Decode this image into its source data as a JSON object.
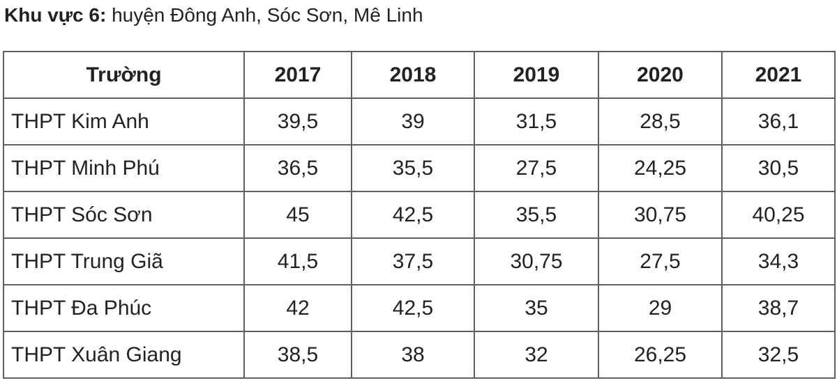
{
  "heading": {
    "bold": "Khu vực 6:",
    "text": " huyện Đông Anh, Sóc Sơn, Mê Linh"
  },
  "table": {
    "headers": [
      "Trường",
      "2017",
      "2018",
      "2019",
      "2020",
      "2021"
    ],
    "rows": [
      [
        "THPT Kim Anh",
        "39,5",
        "39",
        "31,5",
        "28,5",
        "36,1"
      ],
      [
        "THPT Minh Phú",
        "36,5",
        "35,5",
        "27,5",
        "24,25",
        "30,5"
      ],
      [
        "THPT Sóc Sơn",
        "45",
        "42,5",
        "35,5",
        "30,75",
        "40,25"
      ],
      [
        "THPT Trung Giã",
        "41,5",
        "37,5",
        "30,75",
        "27,5",
        "34,3"
      ],
      [
        "THPT Đa Phúc",
        "42",
        "42,5",
        "35",
        "29",
        "38,7"
      ],
      [
        "THPT Xuân Giang",
        "38,5",
        "38",
        "32",
        "26,25",
        "32,5"
      ]
    ]
  }
}
